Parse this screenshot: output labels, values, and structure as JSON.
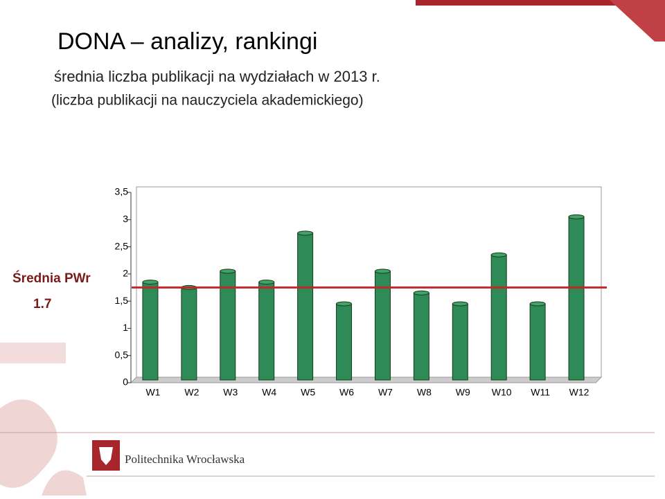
{
  "header": {
    "title": "DONA – analizy, rankingi",
    "subtitle": "średnia liczba publikacji na wydziałach w 2013 r.",
    "note": "(liczba publikacji na nauczyciela akademickiego)"
  },
  "chart_data": {
    "type": "bar",
    "categories": [
      "W1",
      "W2",
      "W3",
      "W4",
      "W5",
      "W6",
      "W7",
      "W8",
      "W9",
      "W10",
      "W11",
      "W12"
    ],
    "values": [
      1.8,
      1.7,
      2.0,
      1.8,
      2.7,
      1.4,
      2.0,
      1.6,
      1.4,
      2.3,
      1.4,
      3.0
    ],
    "color": "#2e8b57",
    "ylim": [
      0,
      3.5
    ],
    "yticks": [
      0,
      {
        "value": 0.5,
        "label": "0,5"
      },
      1,
      {
        "value": 1.5,
        "label": "1,5"
      },
      2,
      {
        "value": 2.5,
        "label": "2,5"
      },
      3,
      {
        "value": 3.5,
        "label": "3,5"
      }
    ],
    "grid": false,
    "reference_line": {
      "name": "Średnia PWr",
      "value": 1.7,
      "value_label": "1.7",
      "color": "#c0282d"
    }
  },
  "footer": {
    "logo_text": "Politechnika Wrocławska"
  }
}
